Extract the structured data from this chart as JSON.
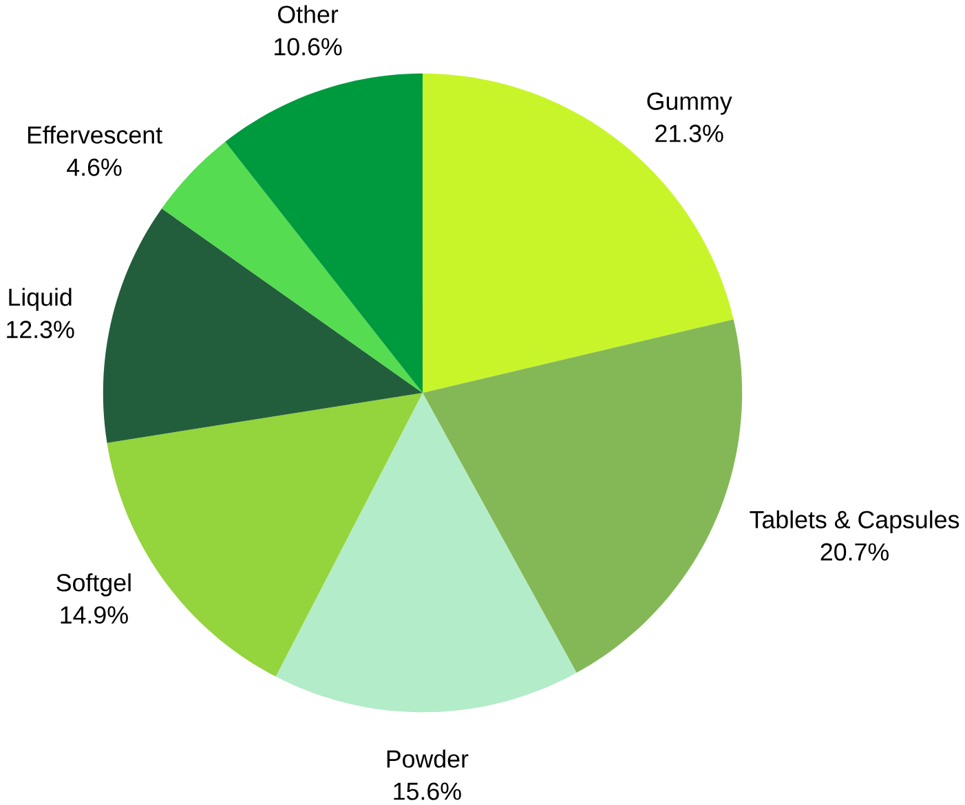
{
  "chart_data": {
    "type": "pie",
    "categories": [
      "Gummy",
      "Tablets & Capsules",
      "Powder",
      "Softgel",
      "Liquid",
      "Effervescent",
      "Other"
    ],
    "values": [
      21.3,
      20.7,
      15.6,
      14.9,
      12.3,
      4.6,
      10.6
    ],
    "value_labels": [
      "21.3%",
      "20.7%",
      "15.6%",
      "14.9%",
      "12.3%",
      "4.6%",
      "10.6%"
    ],
    "colors": [
      "#c8f52a",
      "#84b857",
      "#b3ecc8",
      "#94d43c",
      "#235e3c",
      "#55dc50",
      "#009a3e"
    ]
  }
}
